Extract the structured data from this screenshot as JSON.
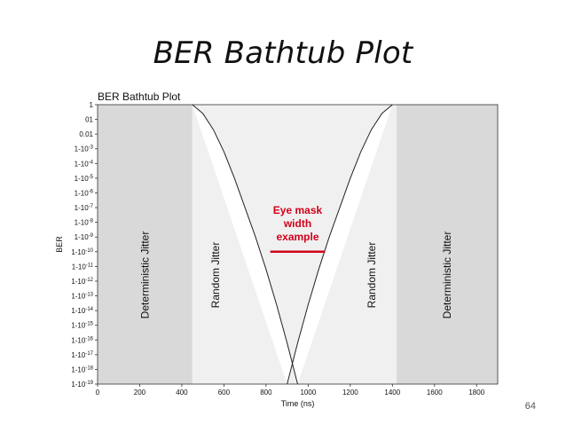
{
  "slide": {
    "title": "BER Bathtub Plot",
    "page_number": "64"
  },
  "chart_data": {
    "type": "line",
    "title": "BER Bathtub Plot",
    "xlabel": "Time (ns)",
    "ylabel": "BER",
    "xlim": [
      0,
      1900
    ],
    "x_ticks": [
      0,
      200,
      400,
      600,
      800,
      1000,
      1200,
      1400,
      1600,
      1800
    ],
    "y_scale": "log",
    "ylim_exponent": [
      -19,
      0
    ],
    "y_tick_labels": [
      "1",
      "01",
      "0.01",
      "1-10",
      "1-10",
      "1-10",
      "1-10",
      "1-10",
      "1-10",
      "1-10",
      "1-10",
      "1-10",
      "1-10",
      "1-10",
      "1-10",
      "1-10",
      "1-10",
      "1-10",
      "1-10",
      "1-10"
    ],
    "y_tick_exponents": [
      "",
      "",
      "",
      "-3",
      "-4",
      "-5",
      "-6",
      "-7",
      "-8",
      "-9",
      "-10",
      "-11",
      "-12",
      "-13",
      "-14",
      "-15",
      "-16",
      "-17",
      "-18",
      "-19"
    ],
    "grid": false,
    "regions": [
      {
        "label": "Deterministic Jitter",
        "x_range": [
          0,
          450
        ],
        "color": "#d9d9d9"
      },
      {
        "label": "Random Jitter",
        "x_range": [
          450,
          950
        ],
        "color": "#f0f0f0"
      },
      {
        "label": "Random Jitter",
        "x_range": [
          950,
          1420
        ],
        "color": "#f0f0f0"
      },
      {
        "label": "Deterministic Jitter",
        "x_range": [
          1420,
          1900
        ],
        "color": "#d9d9d9"
      }
    ],
    "series": [
      {
        "color": "#222222",
        "x": [
          450,
          500,
          550,
          600,
          650,
          700,
          750,
          800,
          850,
          900,
          950
        ],
        "y_exp": [
          0,
          -0.6,
          -1.7,
          -3.2,
          -5.0,
          -7.0,
          -9.0,
          -11.2,
          -13.6,
          -16.2,
          -19
        ]
      },
      {
        "color": "#222222",
        "x": [
          900,
          950,
          1000,
          1050,
          1100,
          1150,
          1200,
          1250,
          1300,
          1350,
          1400
        ],
        "y_exp": [
          -19,
          -16.2,
          -13.6,
          -11.2,
          -9.0,
          -7.0,
          -5.0,
          -3.2,
          -1.7,
          -0.6,
          0
        ]
      }
    ],
    "annotation": {
      "lines": [
        "Eye mask",
        "width",
        "example"
      ],
      "color": "#d0021b",
      "marker_x_range": [
        820,
        1080
      ],
      "marker_y_exp": -10
    }
  }
}
